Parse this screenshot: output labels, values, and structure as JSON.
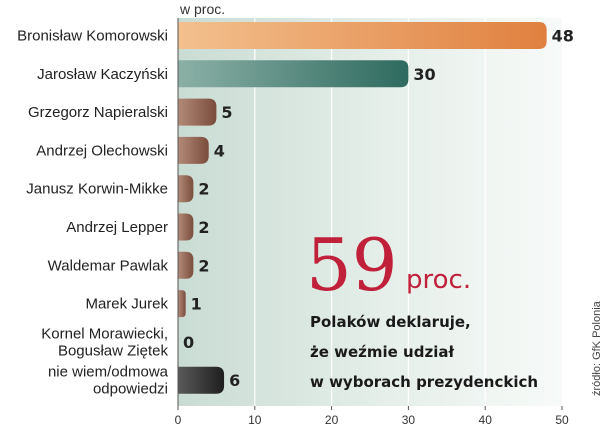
{
  "chart_data": {
    "type": "bar",
    "orientation": "horizontal",
    "unit_label": "w proc.",
    "categories": [
      [
        "Bronisław Komorowski"
      ],
      [
        "Jarosław Kaczyński"
      ],
      [
        "Grzegorz Napieralski"
      ],
      [
        "Andrzej Olechowski"
      ],
      [
        "Janusz Korwin-Mikke"
      ],
      [
        "Andrzej Lepper"
      ],
      [
        "Waldemar Pawlak"
      ],
      [
        "Marek Jurek"
      ],
      [
        "Kornel Morawiecki,",
        "Bogusław Ziętek"
      ],
      [
        "nie wiem/odmowa",
        "odpowiedzi"
      ]
    ],
    "values": [
      48,
      30,
      5,
      4,
      2,
      2,
      2,
      1,
      0,
      6
    ],
    "value_labels": [
      "48",
      "30",
      "5",
      "4",
      "2",
      "2",
      "2",
      "1",
      "0",
      "6"
    ],
    "highlight_index": 0,
    "xlim": [
      0,
      50
    ],
    "xticks": [
      0,
      10,
      20,
      30,
      40,
      50
    ],
    "xtick_labels": [
      "0",
      "10",
      "20",
      "30",
      "40",
      "50"
    ],
    "grid": true,
    "colors": {
      "highlight_bar": "#e8935a",
      "second_bar": "#3f7a6f",
      "other_bars": "#8a5a48",
      "dont_know_bar": "#2a2a2a",
      "highlight_value": "#c0203a",
      "plot_background": "#dde9e3",
      "gridline": "#ffffff",
      "accent": "#c0203a"
    }
  },
  "annotation": {
    "number": "59",
    "unit": "proc.",
    "lines": [
      "Polaków deklaruje,",
      "że weźmie udział",
      "w wyborach prezydenckich"
    ]
  },
  "source": "źródło: GfK Polonia"
}
